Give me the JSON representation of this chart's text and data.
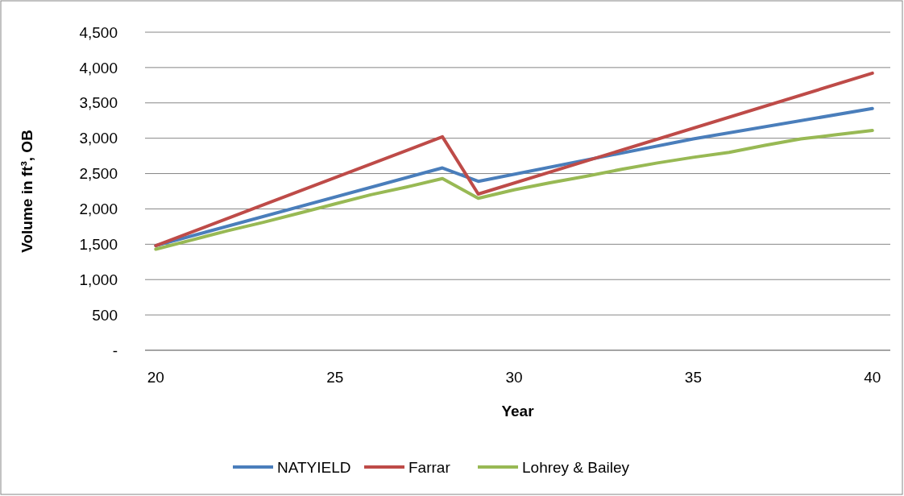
{
  "chart_data": {
    "type": "line",
    "xlabel": "Year",
    "ylabel": "Volume in ft³, OB",
    "xlim": [
      19.7,
      40.5
    ],
    "xticks": [
      20,
      25,
      30,
      35,
      40
    ],
    "ylim": [
      0,
      4500
    ],
    "yticks": [
      {
        "value": 0,
        "label": "-"
      },
      {
        "value": 500,
        "label": "500"
      },
      {
        "value": 1000,
        "label": "1,000"
      },
      {
        "value": 1500,
        "label": "1,500"
      },
      {
        "value": 2000,
        "label": "2,000"
      },
      {
        "value": 2500,
        "label": "2,500"
      },
      {
        "value": 3000,
        "label": "3,000"
      },
      {
        "value": 3500,
        "label": "3,500"
      },
      {
        "value": 4000,
        "label": "4,000"
      },
      {
        "value": 4500,
        "label": "4,500"
      }
    ],
    "grid": "y",
    "legend": "bottom",
    "marker": "none",
    "line_style": "solid",
    "series": [
      {
        "name": "NATYIELD",
        "color": "#4a7ebb",
        "x": [
          20,
          28,
          29,
          35,
          40
        ],
        "values": [
          1480,
          2580,
          2390,
          2990,
          3420
        ]
      },
      {
        "name": "Farrar",
        "color": "#be4b48",
        "x": [
          20,
          28,
          29,
          40
        ],
        "values": [
          1480,
          3020,
          2210,
          3920
        ]
      },
      {
        "name": "Lohrey & Bailey",
        "color": "#98b954",
        "x": [
          20,
          21,
          22,
          23,
          24,
          25,
          26,
          27,
          28,
          29,
          30,
          31,
          32,
          33,
          34,
          35,
          36,
          37,
          38,
          39,
          40
        ],
        "values": [
          1430,
          1560,
          1690,
          1810,
          1940,
          2070,
          2200,
          2310,
          2430,
          2150,
          2270,
          2370,
          2460,
          2560,
          2650,
          2730,
          2800,
          2900,
          2990,
          3050,
          3110
        ]
      }
    ]
  }
}
